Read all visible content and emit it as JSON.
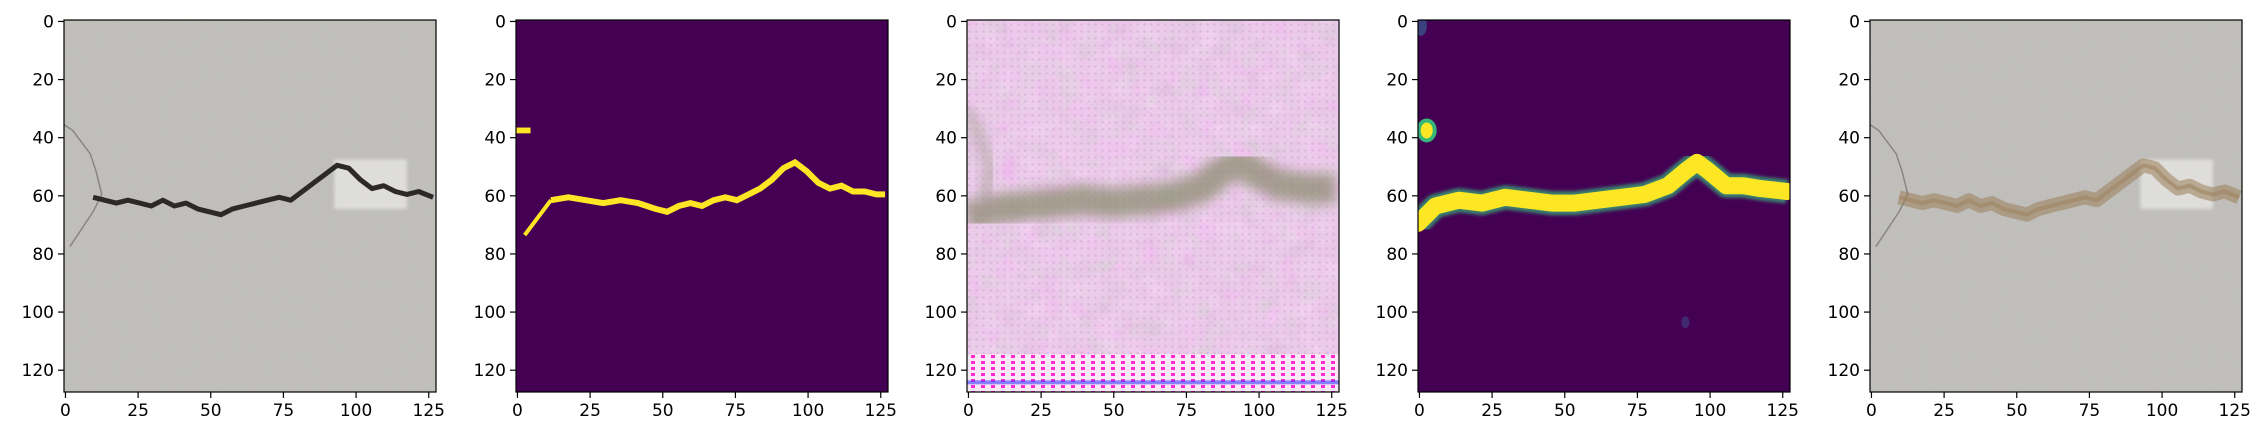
{
  "figure": {
    "panel_count": 5,
    "x_tick_labels": [
      "0",
      "25",
      "50",
      "75",
      "100",
      "125"
    ],
    "y_tick_labels": [
      "0",
      "20",
      "40",
      "60",
      "80",
      "100",
      "120"
    ],
    "x_tick_values": [
      0,
      25,
      50,
      75,
      100,
      125
    ],
    "y_tick_values": [
      0,
      20,
      40,
      60,
      80,
      100,
      120
    ],
    "image_extent": [
      0,
      128
    ],
    "panels": [
      {
        "kind": "input-photo",
        "description_icon": "concrete-crack-image"
      },
      {
        "kind": "ground-truth-mask",
        "description_icon": "binary-mask-image",
        "background": "#440154",
        "foreground": "#fde725"
      },
      {
        "kind": "generated-image",
        "description_icon": "reconstruction-image"
      },
      {
        "kind": "predicted-heatmap",
        "description_icon": "prediction-heatmap-image",
        "background": "#440154",
        "foreground": "#fde725"
      },
      {
        "kind": "overlay",
        "description_icon": "overlay-image"
      }
    ]
  }
}
